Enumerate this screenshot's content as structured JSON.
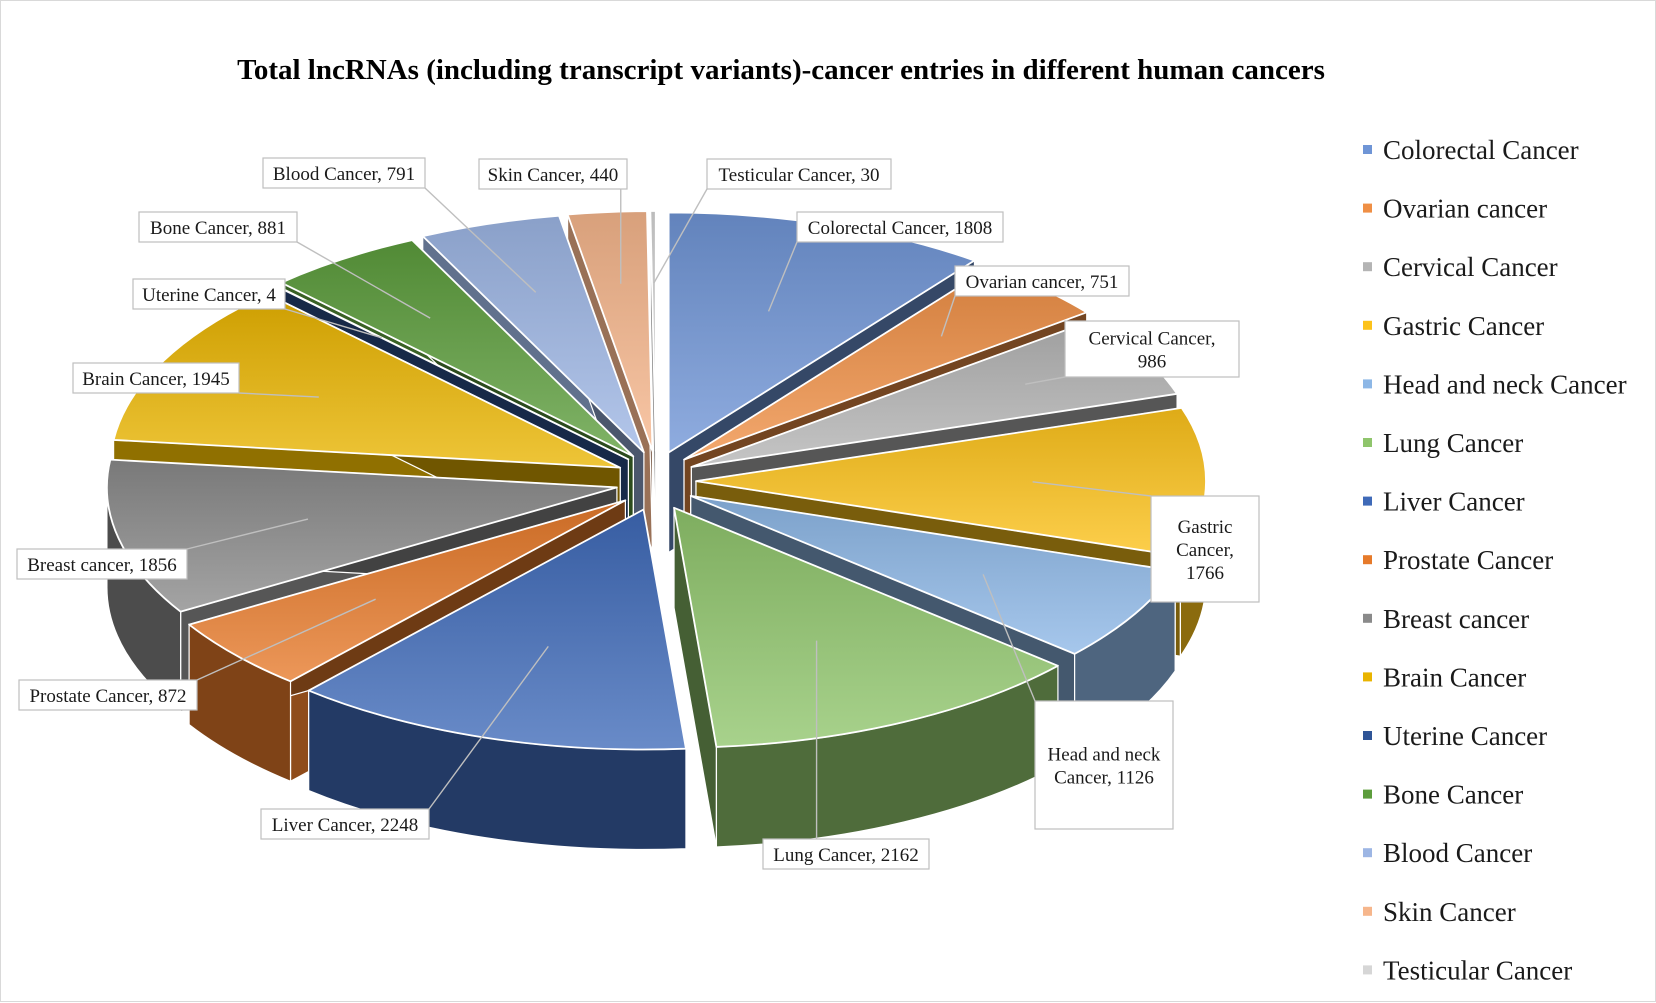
{
  "chart_data": {
    "type": "pie",
    "title": "Total lncRNAs (including transcript variants)-cancer entries in different human cancers",
    "exploded": true,
    "three_d": true,
    "legend_position": "right",
    "data_labels": "category, value",
    "categories": [
      "Colorectal Cancer",
      "Ovarian cancer",
      "Cervical Cancer",
      "Gastric Cancer",
      "Head and neck Cancer",
      "Lung Cancer",
      "Liver Cancer",
      "Prostate Cancer",
      "Breast cancer",
      "Brain Cancer",
      "Uterine Cancer",
      "Bone Cancer",
      "Blood Cancer",
      "Skin Cancer",
      "Testicular Cancer"
    ],
    "values": [
      1808,
      751,
      986,
      1766,
      1126,
      2162,
      2248,
      872,
      1856,
      1945,
      4,
      881,
      791,
      440,
      30
    ],
    "colors": [
      "#6f95d6",
      "#ef8f45",
      "#b4b4b4",
      "#fcc21a",
      "#8db7e6",
      "#8fc56c",
      "#3f6ab8",
      "#e67a2a",
      "#8a8a8a",
      "#e9b400",
      "#2f5597",
      "#5c9d3c",
      "#9db6e4",
      "#f6b68c",
      "#d6d6d6"
    ]
  }
}
